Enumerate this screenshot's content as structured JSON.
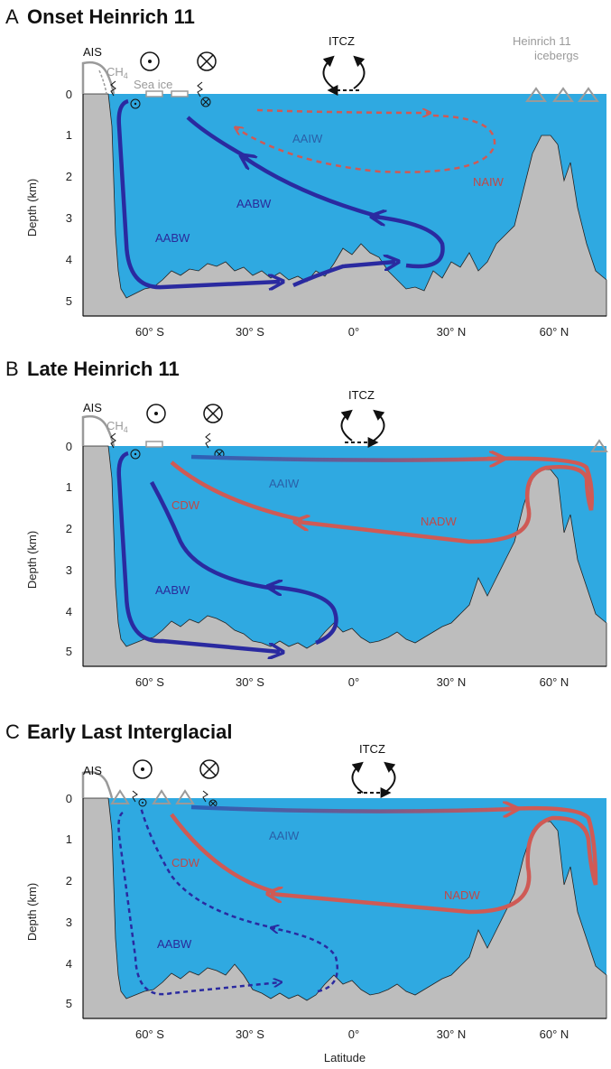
{
  "colors": {
    "ocean": "#2fa9e1",
    "seafloor": "#bdbdbd",
    "aabw": "#2a2aa0",
    "nadw": "#cf5a55",
    "ice_gray": "#9a9a9a"
  },
  "panels": [
    {
      "letter": "A",
      "title": "Onset Heinrich 11",
      "labels": {
        "ais": "AIS",
        "ch4": "CH",
        "ch4_sub": "4",
        "sea_ice": "Sea ice",
        "itcz": "ITCZ",
        "icebergs_line1": "Heinrich 11",
        "icebergs_line2": "icebergs"
      },
      "water_masses": [
        "AAIW",
        "NAIW",
        "AABW",
        "AABW"
      ]
    },
    {
      "letter": "B",
      "title": "Late Heinrich 11",
      "labels": {
        "ais": "AIS",
        "ch4": "CH",
        "ch4_sub": "4",
        "itcz": "ITCZ"
      },
      "water_masses": [
        "AAIW",
        "CDW",
        "NADW",
        "AABW"
      ]
    },
    {
      "letter": "C",
      "title": "Early Last Interglacial",
      "labels": {
        "ais": "AIS",
        "itcz": "ITCZ"
      },
      "water_masses": [
        "AAIW",
        "CDW",
        "NADW",
        "AABW"
      ]
    }
  ],
  "axes": {
    "ylabel": "Depth (km)",
    "xlabel": "Latitude",
    "depth_ticks": [
      "0",
      "1",
      "2",
      "3",
      "4",
      "5"
    ],
    "lat_ticks": [
      "60° S",
      "30° S",
      "0°",
      "30° N",
      "60° N"
    ]
  }
}
